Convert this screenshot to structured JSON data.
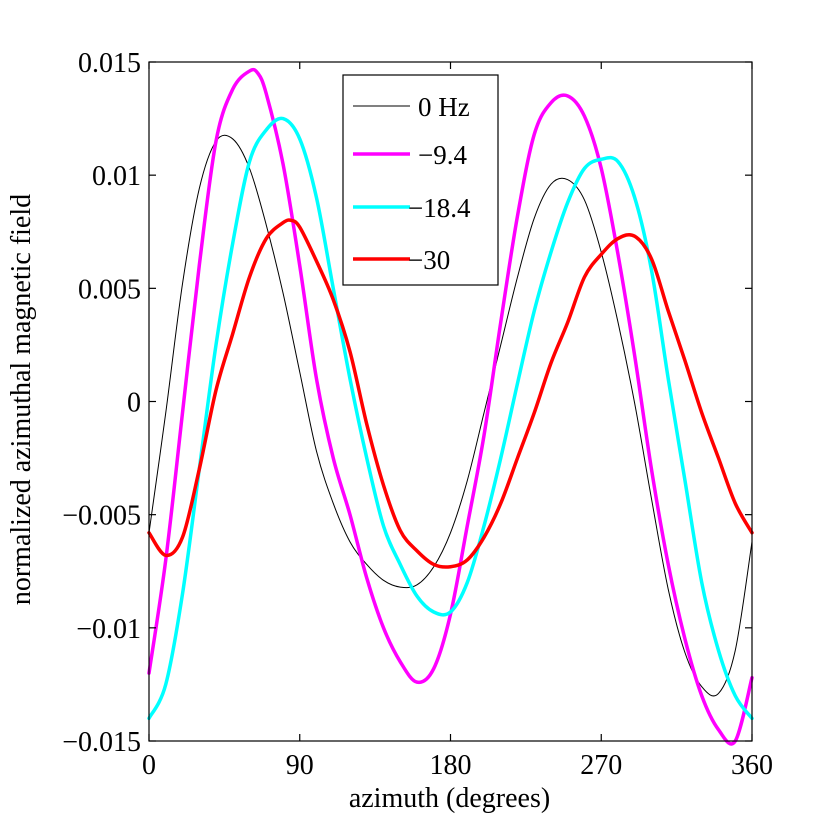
{
  "chart_data": {
    "type": "line",
    "title": "",
    "xlabel": "azimuth (degrees)",
    "ylabel": "normalized azimuthal magnetic field",
    "xlim": [
      0,
      360
    ],
    "ylim": [
      -0.015,
      0.015
    ],
    "xticks": [
      0,
      90,
      180,
      270,
      360
    ],
    "xtick_labels": [
      "0",
      "90",
      "180",
      "270",
      "360"
    ],
    "yticks": [
      -0.015,
      -0.01,
      -0.005,
      0,
      0.005,
      0.01,
      0.015
    ],
    "ytick_labels": [
      "−0.015",
      "−0.01",
      "−0.005",
      "0",
      "0.005",
      "0.01",
      "0.015"
    ],
    "grid": false,
    "legend_position": "top-center",
    "series": [
      {
        "name": "0 Hz",
        "color": "#000000",
        "x": [
          0,
          10,
          20,
          30,
          40,
          50,
          60,
          70,
          80,
          90,
          100,
          110,
          120,
          130,
          140,
          150,
          160,
          170,
          180,
          190,
          200,
          210,
          220,
          230,
          240,
          250,
          260,
          270,
          280,
          290,
          300,
          310,
          320,
          330,
          340,
          350,
          360
        ],
        "y": [
          -0.0058,
          -0.0005,
          0.0052,
          0.0094,
          0.0115,
          0.0116,
          0.0103,
          0.0078,
          0.0048,
          0.0013,
          -0.0022,
          -0.0045,
          -0.0062,
          -0.0072,
          -0.0079,
          -0.0082,
          -0.0081,
          -0.0073,
          -0.0058,
          -0.0035,
          -0.0005,
          0.0025,
          0.0055,
          0.0081,
          0.0096,
          0.0098,
          0.0089,
          0.0066,
          0.0035,
          -0.0001,
          -0.0043,
          -0.0083,
          -0.0111,
          -0.0126,
          -0.0129,
          -0.011,
          -0.0062
        ]
      },
      {
        "name": "−9.4",
        "color": "#ff00ff",
        "x": [
          0,
          10,
          20,
          30,
          40,
          50,
          60,
          65,
          70,
          80,
          90,
          100,
          110,
          120,
          130,
          140,
          150,
          160,
          170,
          180,
          190,
          200,
          210,
          220,
          230,
          240,
          250,
          260,
          270,
          280,
          290,
          300,
          310,
          320,
          330,
          340,
          350,
          360
        ],
        "y": [
          -0.012,
          -0.007,
          -0.0005,
          0.006,
          0.0115,
          0.0138,
          0.0146,
          0.0145,
          0.0136,
          0.0105,
          0.006,
          0.001,
          -0.0025,
          -0.005,
          -0.0078,
          -0.01,
          -0.0115,
          -0.0124,
          -0.0118,
          -0.0094,
          -0.0055,
          -0.0015,
          0.0035,
          0.0082,
          0.0118,
          0.0132,
          0.0135,
          0.0126,
          0.0103,
          0.0065,
          0.002,
          -0.003,
          -0.0072,
          -0.0105,
          -0.013,
          -0.0145,
          -0.015,
          -0.0122
        ]
      },
      {
        "name": "−18.4",
        "color": "#00ffff",
        "x": [
          0,
          10,
          20,
          30,
          40,
          50,
          60,
          70,
          80,
          90,
          100,
          110,
          120,
          130,
          140,
          150,
          160,
          170,
          180,
          190,
          200,
          210,
          220,
          230,
          240,
          250,
          260,
          270,
          280,
          290,
          300,
          310,
          320,
          330,
          340,
          350,
          360
        ],
        "y": [
          -0.014,
          -0.0125,
          -0.0085,
          -0.003,
          0.0025,
          0.007,
          0.0106,
          0.012,
          0.0125,
          0.0116,
          0.009,
          0.005,
          0.001,
          -0.0025,
          -0.0055,
          -0.0072,
          -0.0086,
          -0.0093,
          -0.0093,
          -0.008,
          -0.0055,
          -0.0025,
          0.0008,
          0.004,
          0.0066,
          0.0088,
          0.0103,
          0.0107,
          0.0106,
          0.009,
          0.0058,
          0.001,
          -0.0035,
          -0.008,
          -0.011,
          -0.013,
          -0.014
        ]
      },
      {
        "name": "−30",
        "color": "#ff0000",
        "x": [
          0,
          10,
          20,
          30,
          40,
          50,
          60,
          70,
          80,
          85,
          90,
          100,
          110,
          120,
          130,
          140,
          150,
          160,
          170,
          180,
          190,
          200,
          210,
          220,
          230,
          240,
          250,
          260,
          270,
          280,
          290,
          300,
          310,
          320,
          330,
          340,
          350,
          360
        ],
        "y": [
          -0.0058,
          -0.0068,
          -0.006,
          -0.003,
          0.0005,
          0.003,
          0.0055,
          0.0072,
          0.0079,
          0.008,
          0.0077,
          0.0062,
          0.0045,
          0.0022,
          -0.001,
          -0.0037,
          -0.0057,
          -0.0066,
          -0.0072,
          -0.0073,
          -0.007,
          -0.006,
          -0.0045,
          -0.0025,
          -0.0005,
          0.0017,
          0.0035,
          0.0055,
          0.0065,
          0.0072,
          0.0073,
          0.0063,
          0.004,
          0.0018,
          -0.0005,
          -0.0025,
          -0.0045,
          -0.0058
        ]
      }
    ]
  }
}
